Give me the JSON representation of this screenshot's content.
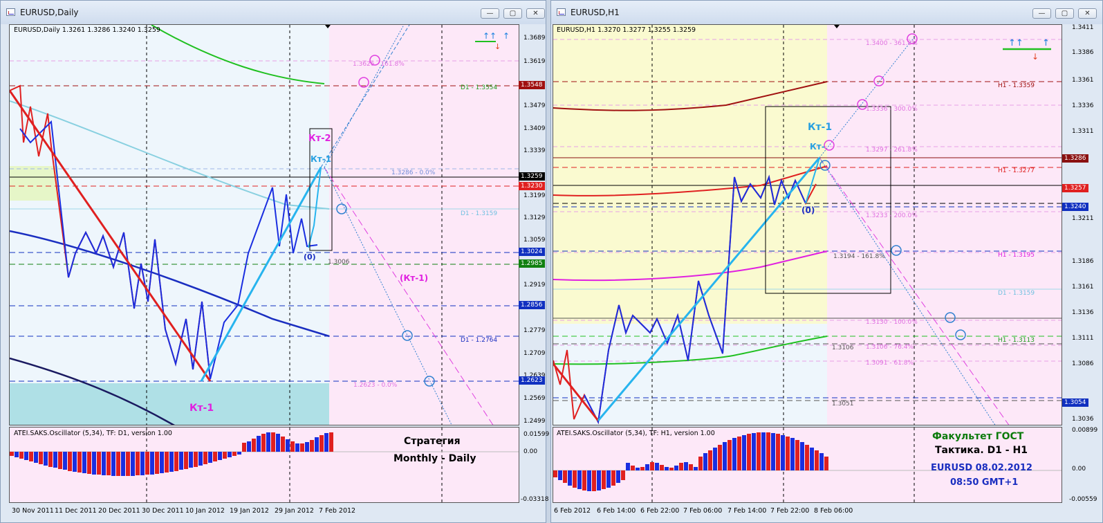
{
  "left": {
    "title": "EURUSD,Daily",
    "header": "EURUSD,Daily  1.3261 1.3286 1.3240 1.3259",
    "osc_header": "ATEI.SAKS.Oscillator (5,34), TF: D1, version 1.00",
    "price_axis": [
      "1.3689",
      "1.3619",
      "1.3479",
      "1.3409",
      "1.3339",
      "1.3199",
      "1.3129",
      "1.3059",
      "1.2919",
      "1.2779",
      "1.2709",
      "1.2639",
      "1.2569",
      "1.2499"
    ],
    "osc_axis": [
      "0.01599",
      "0.00",
      "-0.03318"
    ],
    "tags": [
      {
        "text": "1.3548",
        "color": "#a01010"
      },
      {
        "text": "1.3259",
        "color": "#000000"
      },
      {
        "text": "1.3230",
        "color": "#e02020"
      },
      {
        "text": "1.3024",
        "color": "#1030c0"
      },
      {
        "text": "1.2985",
        "color": "#108010"
      },
      {
        "text": "1.2856",
        "color": "#1030c0"
      },
      {
        "text": "1.2623",
        "color": "#1030c0"
      }
    ],
    "level_labels": [
      "1.3626 - 161.8%",
      "D1 - 1.3554",
      "1.3286 - 0.0%",
      "D1 - 1.3159",
      "1.3006",
      "D1 - 1.2764",
      "1.2623 - 0.0%"
    ],
    "wave_labels": {
      "kt2": "Кт-2",
      "kt1_top": "Кт-1",
      "zero": "(0)",
      "kt1_neg": "(Кт-1)",
      "kt1_bottom": "Кт-1"
    },
    "strategy": [
      "Стратегия",
      "Monthly - Daily"
    ],
    "dates": [
      "30 Nov 2011",
      "11 Dec 2011",
      "20 Dec 2011",
      "30 Dec 2011",
      "10 Jan 2012",
      "19 Jan 2012",
      "29 Jan 2012",
      "7 Feb 2012"
    ],
    "window_buttons": [
      "—",
      "▢",
      "✕"
    ]
  },
  "right": {
    "title": "EURUSD,H1",
    "header": "EURUSD,H1  1.3270 1.3277 1.3255 1.3259",
    "osc_header": "ATEI.SAKS.Oscillator (5,34), TF: H1, version 1.00",
    "price_axis": [
      "1.3411",
      "1.3386",
      "1.3361",
      "1.3336",
      "1.3311",
      "1.3211",
      "1.3186",
      "1.3161",
      "1.3136",
      "1.3111",
      "1.3086",
      "1.3036"
    ],
    "osc_axis": [
      "0.00899",
      "0.00",
      "-0.00559"
    ],
    "tags": [
      {
        "text": "1.3286",
        "color": "#8a1010"
      },
      {
        "text": "1.3257",
        "color": "#e02020"
      },
      {
        "text": "1.3240",
        "color": "#1030c0"
      },
      {
        "text": "1.3054",
        "color": "#1030c0"
      }
    ],
    "level_labels": [
      "1.3400 - 361.8%",
      "H1 - 1.3359",
      "1.3336 - 300.0%",
      "1.3297 - 261.8%",
      "H1 - 1.3277",
      "1.3233 - 200.0%",
      "1.3194 - 161.8%",
      "H1 - 1.3195",
      "D1 - 1.3159",
      "1.3130 - 100.0%",
      "H1 - 1.3113",
      "1.3106",
      "1.3106 - 76.4%",
      "1.3091 - 61.8%",
      "1.3051"
    ],
    "wave_labels": {
      "kt1": "Кт-1",
      "kt1_small": "Кт-",
      "zero": "(0)"
    },
    "gost": [
      "Факультет ГОСТ",
      "Тактика. D1 - H1",
      "EURUSD 08.02.2012",
      "08:50 GMT+1"
    ],
    "dates": [
      "6 Feb 2012",
      "6 Feb 14:00",
      "6 Feb 22:00",
      "7 Feb 06:00",
      "7 Feb 14:00",
      "7 Feb 22:00",
      "8 Feb 06:00"
    ],
    "window_buttons": [
      "—",
      "▢",
      "✕"
    ]
  },
  "colors": {
    "bear": "#e02020",
    "bull": "#1a2ee0",
    "wave": "#27b4ee",
    "fib": "#e040e0"
  }
}
